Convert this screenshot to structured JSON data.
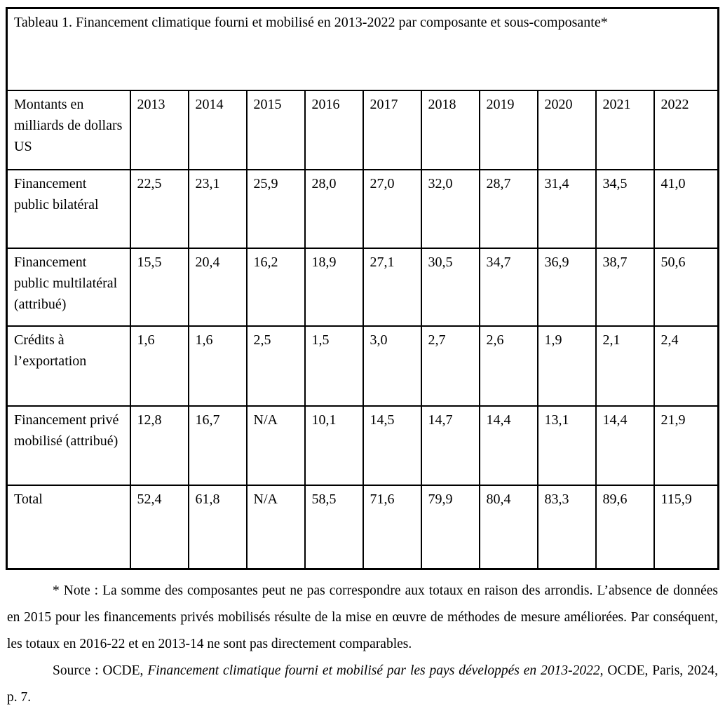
{
  "title": "Tableau 1. Financement climatique fourni et mobilisé en 2013-2022 par composante et sous-composante*",
  "table": {
    "unit_label": "Montants en milliards de dollars US",
    "years": [
      "2013",
      "2014",
      "2015",
      "2016",
      "2017",
      "2018",
      "2019",
      "2020",
      "2021",
      "2022"
    ],
    "rows": [
      {
        "label": "Financement public bilatéral",
        "values": [
          "22,5",
          "23,1",
          "25,9",
          "28,0",
          "27,0",
          "32,0",
          "28,7",
          "31,4",
          "34,5",
          "41,0"
        ]
      },
      {
        "label": "Financement public multilatéral (attribué)",
        "values": [
          "15,5",
          "20,4",
          "16,2",
          "18,9",
          "27,1",
          "30,5",
          "34,7",
          "36,9",
          "38,7",
          "50,6"
        ]
      },
      {
        "label": "Crédits à l’exportation",
        "values": [
          "1,6",
          "1,6",
          "2,5",
          "1,5",
          "3,0",
          "2,7",
          "2,6",
          "1,9",
          "2,1",
          "2,4"
        ]
      },
      {
        "label": "Financement privé mobilisé (attribué)",
        "values": [
          "12,8",
          "16,7",
          "N/A",
          "10,1",
          "14,5",
          "14,7",
          "14,4",
          "13,1",
          "14,4",
          "21,9"
        ]
      },
      {
        "label": "Total",
        "values": [
          "52,4",
          "61,8",
          "N/A",
          "58,5",
          "71,6",
          "79,9",
          "80,4",
          "83,3",
          "89,6",
          "115,9"
        ]
      }
    ]
  },
  "footnote": "* Note : La somme des composantes peut ne pas correspondre aux totaux en raison des arrondis. L’absence de données en 2015 pour les financements privés mobilisés résulte de la mise en œuvre de méthodes de mesure améliorées. Par conséquent, les totaux en 2016-22 et en 2013-14 ne sont pas directement comparables.",
  "source": {
    "prefix": "Source : OCDE, ",
    "italic_title": "Financement climatique fourni et mobilisé par les pays développés en 2013-2022",
    "suffix": ", OCDE, Paris, 2024, p. 7."
  },
  "chart_data": {
    "type": "table",
    "title": "Tableau 1. Financement climatique fourni et mobilisé en 2013-2022 par composante et sous-composante*",
    "unit": "Montants en milliards de dollars US",
    "categories": [
      2013,
      2014,
      2015,
      2016,
      2017,
      2018,
      2019,
      2020,
      2021,
      2022
    ],
    "series": [
      {
        "name": "Financement public bilatéral",
        "values": [
          22.5,
          23.1,
          25.9,
          28.0,
          27.0,
          32.0,
          28.7,
          31.4,
          34.5,
          41.0
        ]
      },
      {
        "name": "Financement public multilatéral (attribué)",
        "values": [
          15.5,
          20.4,
          16.2,
          18.9,
          27.1,
          30.5,
          34.7,
          36.9,
          38.7,
          50.6
        ]
      },
      {
        "name": "Crédits à l’exportation",
        "values": [
          1.6,
          1.6,
          2.5,
          1.5,
          3.0,
          2.7,
          2.6,
          1.9,
          2.1,
          2.4
        ]
      },
      {
        "name": "Financement privé mobilisé (attribué)",
        "values": [
          12.8,
          16.7,
          null,
          10.1,
          14.5,
          14.7,
          14.4,
          13.1,
          14.4,
          21.9
        ]
      },
      {
        "name": "Total",
        "values": [
          52.4,
          61.8,
          null,
          58.5,
          71.6,
          79.9,
          80.4,
          83.3,
          89.6,
          115.9
        ]
      }
    ],
    "null_display": "N/A"
  }
}
